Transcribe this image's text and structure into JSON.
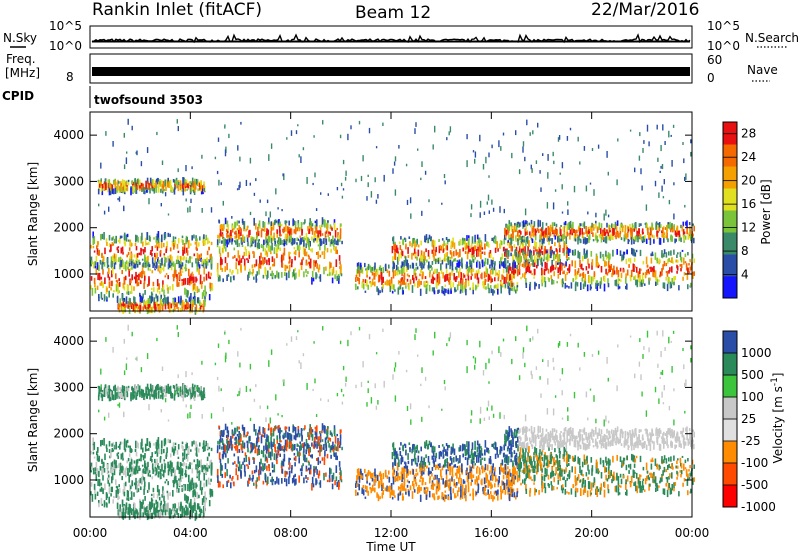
{
  "header": {
    "station": "Rankin Inlet (fitACF)",
    "beam": "Beam 12",
    "date": "22/Mar/2016"
  },
  "noise_panel": {
    "left_label": "N.Sky",
    "right_label": "N.Search",
    "left_ticks": [
      "10^5",
      "10^0"
    ],
    "right_ticks": [
      "10^5",
      "10^0"
    ]
  },
  "freq_panel": {
    "left_label": "Freq.",
    "unit_label": "[MHz]",
    "left_tick": "8",
    "right_label": "Nave",
    "right_ticks": [
      "60",
      "0"
    ]
  },
  "cpid": {
    "label": "CPID",
    "value": "twofsound 3503"
  },
  "colors": {
    "power_scale": [
      "#1414ff",
      "#2a4ea8",
      "#3a8a6a",
      "#7ac43a",
      "#e0e020",
      "#f4a000",
      "#f46a00",
      "#e81010"
    ],
    "velocity_scale": [
      "#ff0000",
      "#ff4a00",
      "#ff8c00",
      "#e0e0e0",
      "#c8c8c8",
      "#3cc43c",
      "#2a8a5a",
      "#2a4ea8"
    ]
  },
  "chart_data": [
    {
      "type": "heatmap",
      "title": "",
      "xlabel": "Time UT",
      "ylabel": "Slant Range [km]",
      "y_ticks": [
        "1000",
        "2000",
        "3000",
        "4000"
      ],
      "ylim": [
        200,
        4500
      ],
      "x_ticks": [
        "00:00",
        "04:00",
        "08:00",
        "12:00",
        "16:00",
        "20:00",
        "00:00"
      ],
      "colorbar_label": "Power [dB]",
      "colorbar_ticks": [
        "4",
        "8",
        "12",
        "16",
        "20",
        "24",
        "28"
      ],
      "colorbar_range": [
        0,
        30
      ]
    },
    {
      "type": "heatmap",
      "title": "",
      "xlabel": "Time UT",
      "ylabel": "Slant Range [km]",
      "y_ticks": [
        "1000",
        "2000",
        "3000",
        "4000"
      ],
      "ylim": [
        200,
        4500
      ],
      "x_ticks": [
        "00:00",
        "04:00",
        "08:00",
        "12:00",
        "16:00",
        "20:00",
        "00:00"
      ],
      "colorbar_label": "Velocity [m s^-1]",
      "colorbar_ticks": [
        "1000",
        "500",
        "100",
        "25",
        "-25",
        "-100",
        "-500",
        "-1000"
      ]
    }
  ],
  "axes": {
    "time_label": "Time UT",
    "velocity_unit_main": "Velocity [m s",
    "velocity_unit_exp": "-1",
    "velocity_unit_close": "]"
  }
}
